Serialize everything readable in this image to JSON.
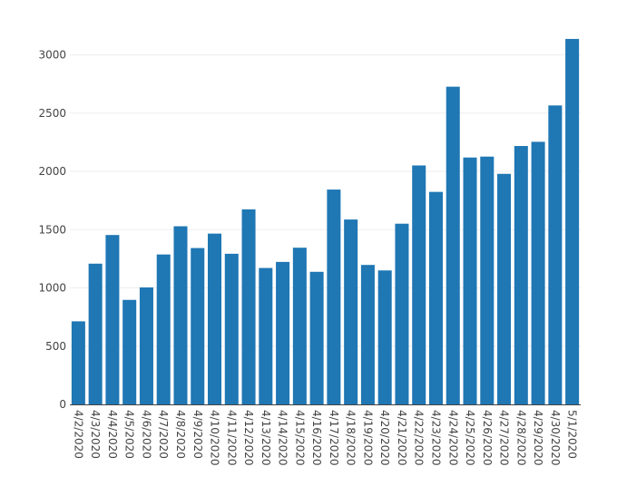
{
  "chart_data": {
    "type": "bar",
    "title": "",
    "xlabel": "",
    "ylabel": "",
    "ylim": [
      0,
      3300
    ],
    "yticks": [
      0,
      500,
      1000,
      1500,
      2000,
      2500,
      3000
    ],
    "grid": true,
    "bar_color": "#1f77b4",
    "categories": [
      "4/2/2020",
      "4/3/2020",
      "4/4/2020",
      "4/5/2020",
      "4/6/2020",
      "4/7/2020",
      "4/8/2020",
      "4/9/2020",
      "4/10/2020",
      "4/11/2020",
      "4/12/2020",
      "4/13/2020",
      "4/14/2020",
      "4/15/2020",
      "4/16/2020",
      "4/17/2020",
      "4/18/2020",
      "4/19/2020",
      "4/20/2020",
      "4/21/2020",
      "4/22/2020",
      "4/23/2020",
      "4/24/2020",
      "4/25/2020",
      "4/26/2020",
      "4/27/2020",
      "4/28/2020",
      "4/29/2020",
      "4/30/2020",
      "5/1/2020"
    ],
    "values": [
      713,
      1208,
      1454,
      897,
      1004,
      1287,
      1529,
      1342,
      1466,
      1293,
      1674,
      1171,
      1223,
      1345,
      1138,
      1844,
      1587,
      1197,
      1150,
      1551,
      2051,
      1824,
      2727,
      2119,
      2127,
      1979,
      2218,
      2254,
      2566,
      3137
    ]
  }
}
